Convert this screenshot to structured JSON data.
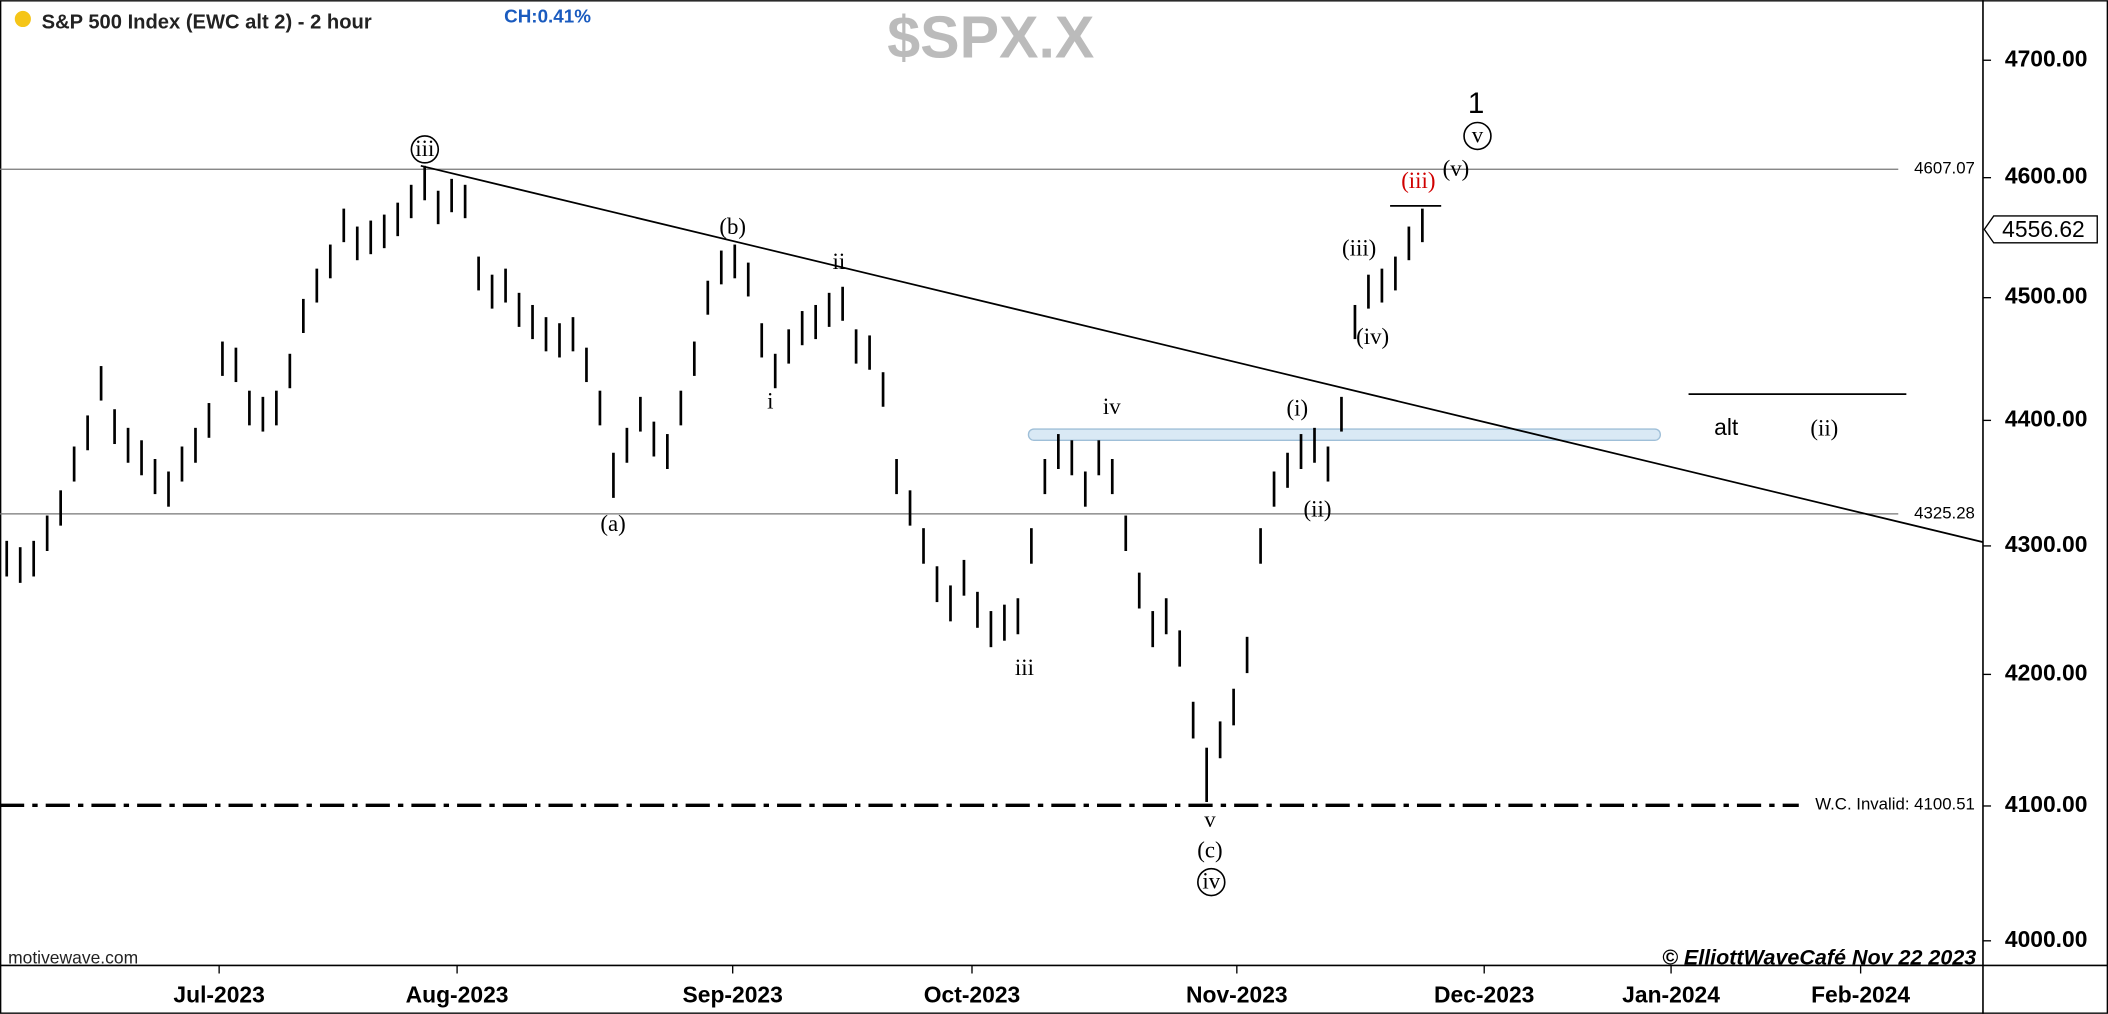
{
  "chart_data": {
    "type": "ohlc",
    "title": "S&P 500 Index (EWC alt 2) - 2 hour",
    "change_label": "CH:0.41%",
    "symbol": "$SPX.X",
    "source": "motivewave.com",
    "credit": "© ElliottWaveCafé Nov 22 2023",
    "color": "#000000",
    "log_scale": true,
    "ylim": [
      3982,
      4752
    ],
    "yticks": [
      {
        "value": 4000,
        "label": "4000.00"
      },
      {
        "value": 4100,
        "label": "4100.00"
      },
      {
        "value": 4200,
        "label": "4200.00"
      },
      {
        "value": 4300,
        "label": "4300.00"
      },
      {
        "value": 4400,
        "label": "4400.00"
      },
      {
        "value": 4500,
        "label": "4500.00"
      },
      {
        "value": 4600,
        "label": "4600.00"
      },
      {
        "value": 4700,
        "label": "4700.00"
      }
    ],
    "xtick_labels": [
      "Jul-2023",
      "Aug-2023",
      "Sep-2023",
      "Oct-2023",
      "Nov-2023",
      "Dec-2023",
      "Jan-2024",
      "Feb-2024"
    ],
    "highs": [
      4304,
      4299,
      4304,
      4324,
      4344,
      4379,
      4404,
      4444,
      4409,
      4394,
      4384,
      4369,
      4359,
      4379,
      4394,
      4414,
      4464,
      4459,
      4424,
      4419,
      4424,
      4454,
      4499,
      4524,
      4544,
      4574,
      4559,
      4564,
      4569,
      4579,
      4594,
      4610,
      4589,
      4599,
      4594,
      4534,
      4519,
      4524,
      4504,
      4494,
      4484,
      4479,
      4484,
      4459,
      4424,
      4374,
      4394,
      4419,
      4399,
      4389,
      4424,
      4464,
      4514,
      4539,
      4544,
      4529,
      4479,
      4454,
      4474,
      4489,
      4494,
      4504,
      4509,
      4474,
      4469,
      4439,
      4369,
      4344,
      4314,
      4284,
      4269,
      4289,
      4264,
      4249,
      4254,
      4259,
      4314,
      4369,
      4389,
      4384,
      4359,
      4384,
      4369,
      4324,
      4279,
      4249,
      4259,
      4234,
      4179,
      4144,
      4164,
      4189,
      4229,
      4314,
      4359,
      4374,
      4389,
      4394,
      4379,
      4419,
      4494,
      4519,
      4524,
      4534,
      4559,
      4574
    ],
    "lows": [
      4276,
      4271,
      4276,
      4296,
      4316,
      4351,
      4376,
      4416,
      4381,
      4366,
      4356,
      4341,
      4331,
      4351,
      4366,
      4386,
      4436,
      4431,
      4396,
      4391,
      4396,
      4426,
      4471,
      4496,
      4516,
      4546,
      4531,
      4536,
      4541,
      4551,
      4566,
      4581,
      4561,
      4571,
      4566,
      4506,
      4491,
      4496,
      4476,
      4466,
      4456,
      4451,
      4456,
      4431,
      4396,
      4338,
      4366,
      4391,
      4371,
      4361,
      4396,
      4436,
      4486,
      4511,
      4516,
      4501,
      4451,
      4426,
      4446,
      4461,
      4466,
      4476,
      4481,
      4446,
      4441,
      4411,
      4341,
      4316,
      4286,
      4256,
      4241,
      4261,
      4236,
      4221,
      4226,
      4231,
      4286,
      4341,
      4361,
      4356,
      4331,
      4356,
      4341,
      4296,
      4251,
      4221,
      4231,
      4206,
      4151,
      4103,
      4136,
      4161,
      4201,
      4286,
      4331,
      4346,
      4361,
      4366,
      4351,
      4391,
      4466,
      4491,
      4496,
      4506,
      4531,
      4546
    ],
    "levels": [
      {
        "value": 4607.07,
        "label": "4607.07",
        "style": "solid"
      },
      {
        "value": 4325.28,
        "label": "4325.28",
        "style": "solid"
      },
      {
        "value": 4100.51,
        "label": "W.C. Invalid: 4100.51",
        "style": "dashdot"
      }
    ],
    "last_price": 4556.62,
    "trendline": [
      4610,
      4303
    ],
    "zone": [
      4384,
      4393
    ],
    "annotations": [
      {
        "text": "iii",
        "circled": true,
        "color": "#000000"
      },
      {
        "text": "(b)",
        "circled": false,
        "color": "#000000"
      },
      {
        "text": "ii",
        "circled": false,
        "color": "#000000"
      },
      {
        "text": "i",
        "circled": false,
        "color": "#000000"
      },
      {
        "text": "(a)",
        "circled": false,
        "color": "#000000"
      },
      {
        "text": "iii",
        "circled": false,
        "color": "#000000"
      },
      {
        "text": "iv",
        "circled": false,
        "color": "#000000"
      },
      {
        "text": "v",
        "circled": false,
        "color": "#000000"
      },
      {
        "text": "(c)",
        "circled": false,
        "color": "#000000"
      },
      {
        "text": "iv",
        "circled": true,
        "color": "#000000"
      },
      {
        "text": "(i)",
        "circled": false,
        "color": "#000000"
      },
      {
        "text": "(ii)",
        "circled": false,
        "color": "#000000"
      },
      {
        "text": "(iii)",
        "circled": false,
        "color": "#000000"
      },
      {
        "text": "(iv)",
        "circled": false,
        "color": "#000000"
      },
      {
        "text": "(iii)",
        "circled": false,
        "color": "#d00000"
      },
      {
        "text": "(v)",
        "circled": false,
        "color": "#000000"
      },
      {
        "text": "v",
        "circled": true,
        "color": "#000000"
      },
      {
        "text": "1",
        "circled": false,
        "color": "#000000"
      },
      {
        "text": "alt",
        "circled": false,
        "color": "#000000"
      },
      {
        "text": "(ii)",
        "circled": false,
        "color": "#000000"
      }
    ]
  }
}
